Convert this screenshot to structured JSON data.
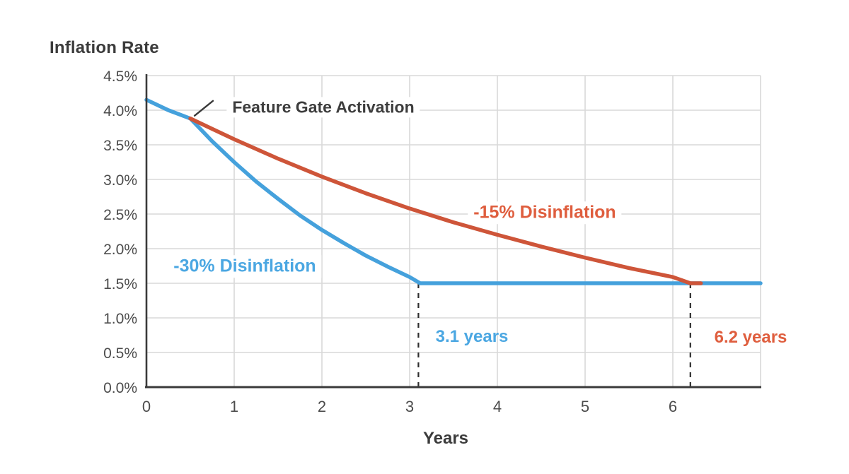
{
  "background": "#ffffff",
  "chart_data": {
    "type": "line",
    "title": "Inflation Rate",
    "xlabel": "Years",
    "ylabel": "Inflation Rate",
    "xlim": [
      0,
      7
    ],
    "ylim": [
      0,
      4.5
    ],
    "grid": true,
    "grid_color": "#d9d9d9",
    "axis_color": "#3a3a3a",
    "tick_color": "#4c4c4c",
    "x_ticks": [
      0,
      1,
      2,
      3,
      4,
      5,
      6
    ],
    "y_ticks": [
      {
        "value": 0.0,
        "label": "0.0%"
      },
      {
        "value": 0.5,
        "label": "0.5%"
      },
      {
        "value": 1.0,
        "label": "1.0%"
      },
      {
        "value": 1.5,
        "label": "1.5%"
      },
      {
        "value": 2.0,
        "label": "2.0%"
      },
      {
        "value": 2.5,
        "label": "2.5%"
      },
      {
        "value": 3.0,
        "label": "3.0%"
      },
      {
        "value": 3.5,
        "label": "3.5%"
      },
      {
        "value": 4.0,
        "label": "4.0%"
      },
      {
        "value": 4.5,
        "label": "4.5%"
      }
    ],
    "terminal_rate_pct": 1.5,
    "series": [
      {
        "name": "-30% Disinflation",
        "line_color": "#45a1dc",
        "label_color": "#4ba7e2",
        "points": [
          [
            0,
            4.15
          ],
          [
            0.25,
            4.0
          ],
          [
            0.5,
            3.88
          ],
          [
            0.75,
            3.55
          ],
          [
            1,
            3.25
          ],
          [
            1.25,
            2.97
          ],
          [
            1.5,
            2.72
          ],
          [
            1.75,
            2.48
          ],
          [
            2,
            2.27
          ],
          [
            2.25,
            2.08
          ],
          [
            2.5,
            1.9
          ],
          [
            2.75,
            1.74
          ],
          [
            3,
            1.59
          ],
          [
            3.12,
            1.5
          ],
          [
            7,
            1.5
          ]
        ]
      },
      {
        "name": "-15% Disinflation",
        "line_color": "#ce5539",
        "label_color": "#df5e3e",
        "points": [
          [
            0.5,
            3.88
          ],
          [
            0.75,
            3.73
          ],
          [
            1,
            3.58
          ],
          [
            1.5,
            3.3
          ],
          [
            2,
            3.04
          ],
          [
            2.5,
            2.8
          ],
          [
            3,
            2.58
          ],
          [
            3.5,
            2.38
          ],
          [
            4,
            2.2
          ],
          [
            4.5,
            2.03
          ],
          [
            5,
            1.87
          ],
          [
            5.5,
            1.72
          ],
          [
            6,
            1.59
          ],
          [
            6.2,
            1.5
          ],
          [
            6.32,
            1.5
          ]
        ]
      }
    ],
    "annotations": [
      {
        "text": "Feature Gate Activation",
        "points_to": {
          "x": 0.5,
          "y": 3.88
        }
      }
    ],
    "markers": [
      {
        "x": 3.1,
        "label": "3.1 years",
        "label_color": "#4ba7e2",
        "line_top": 1.5
      },
      {
        "x": 6.2,
        "label": "6.2 years",
        "label_color": "#df5e3e",
        "line_top": 1.5
      }
    ],
    "marker_line_color": "#2e2e2e"
  }
}
